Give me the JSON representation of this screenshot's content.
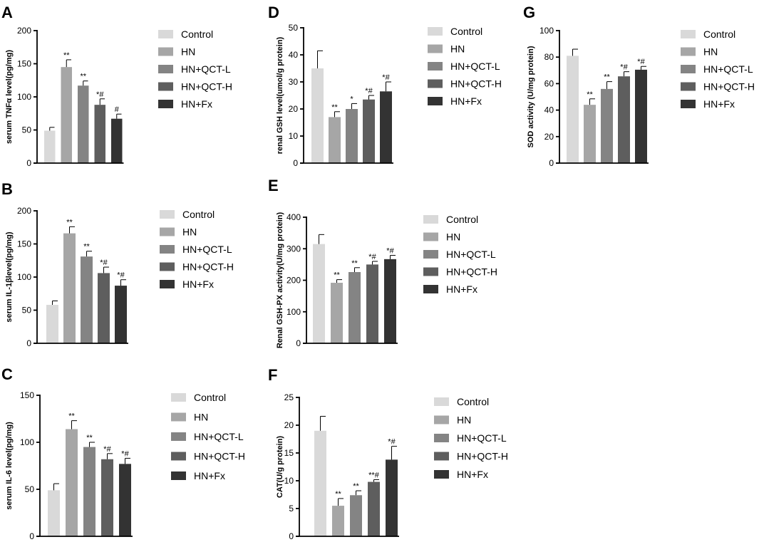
{
  "colors": {
    "Control": "#d9d9d9",
    "HN": "#a6a6a6",
    "HN+QCT-L": "#848484",
    "HN+QCT-H": "#5e5e5e",
    "HN+Fx": "#333333",
    "axis": "#000000",
    "background": "#ffffff"
  },
  "chart_data": [
    {
      "panel": "A",
      "type": "bar",
      "ylabel": "serum TNFα level(pg/mg)",
      "ylim": [
        0,
        200
      ],
      "yticks": [
        0,
        50,
        100,
        150,
        200
      ],
      "categories": [
        "Control",
        "HN",
        "HN+QCT-L",
        "HN+QCT-H",
        "HN+Fx"
      ],
      "values": [
        49,
        145,
        117,
        88,
        67
      ],
      "errors": [
        5,
        11,
        7,
        9,
        7
      ],
      "significance": [
        "",
        "**",
        "**",
        "*#",
        "#"
      ],
      "legend": [
        "Control",
        "HN",
        "HN+QCT-L",
        "HN+QCT-H",
        "HN+Fx"
      ]
    },
    {
      "panel": "B",
      "type": "bar",
      "ylabel": "serum IL-1βlevel(pg/mg)",
      "ylim": [
        0,
        200
      ],
      "yticks": [
        0,
        50,
        100,
        150,
        200
      ],
      "categories": [
        "Control",
        "HN",
        "HN+QCT-L",
        "HN+QCT-H",
        "HN+Fx"
      ],
      "values": [
        58,
        166,
        131,
        106,
        87
      ],
      "errors": [
        6,
        10,
        8,
        9,
        9
      ],
      "significance": [
        "",
        "**",
        "**",
        "*#",
        "*#"
      ],
      "legend": [
        "Control",
        "HN",
        "HN+QCT-L",
        "HN+QCT-H",
        "HN+Fx"
      ]
    },
    {
      "panel": "C",
      "type": "bar",
      "ylabel": "serum IL-6 level(pg/mg)",
      "ylim": [
        0,
        150
      ],
      "yticks": [
        0,
        50,
        100,
        150
      ],
      "categories": [
        "Control",
        "HN",
        "HN+QCT-L",
        "HN+QCT-H",
        "HN+Fx"
      ],
      "values": [
        49,
        114,
        95,
        82,
        77
      ],
      "errors": [
        7,
        9,
        5,
        6,
        6
      ],
      "significance": [
        "",
        "**",
        "**",
        "*#",
        "*#"
      ],
      "legend": [
        "Control",
        "HN",
        "HN+QCT-L",
        "HN+QCT-H",
        "HN+Fx"
      ]
    },
    {
      "panel": "D",
      "type": "bar",
      "ylabel": "renal GSH level(umol/g protein)",
      "ylim": [
        0,
        50
      ],
      "yticks": [
        0,
        10,
        20,
        30,
        40,
        50
      ],
      "categories": [
        "Control",
        "HN",
        "HN+QCT-L",
        "HN+QCT-H",
        "HN+Fx"
      ],
      "values": [
        35,
        17,
        20,
        23.5,
        26.5
      ],
      "errors": [
        6.5,
        2,
        2,
        1.5,
        3.5
      ],
      "significance": [
        "",
        "**",
        "*",
        "*#",
        "*#"
      ],
      "legend": [
        "Control",
        "HN",
        "HN+QCT-L",
        "HN+QCT-H",
        "HN+Fx"
      ]
    },
    {
      "panel": "E",
      "type": "bar",
      "ylabel": "Renal GSH-PX activity(U/mg protein)",
      "ylim": [
        0,
        400
      ],
      "yticks": [
        0,
        100,
        200,
        300,
        400
      ],
      "categories": [
        "Control",
        "HN",
        "HN+QCT-L",
        "HN+QCT-H",
        "HN+Fx"
      ],
      "values": [
        315,
        192,
        226,
        250,
        267
      ],
      "errors": [
        30,
        10,
        14,
        10,
        12
      ],
      "significance": [
        "",
        "**",
        "**",
        "*#",
        "*#"
      ],
      "legend": [
        "Control",
        "HN",
        "HN+QCT-L",
        "HN+QCT-H",
        "HN+Fx"
      ]
    },
    {
      "panel": "F",
      "type": "bar",
      "ylabel": "CAT(U/g protein)",
      "ylim": [
        0,
        25
      ],
      "yticks": [
        0,
        5,
        10,
        15,
        20,
        25
      ],
      "categories": [
        "Control",
        "HN",
        "HN+QCT-L",
        "HN+QCT-H",
        "HN+Fx"
      ],
      "values": [
        19,
        5.5,
        7.4,
        9.8,
        13.8
      ],
      "errors": [
        2.6,
        1.3,
        0.8,
        0.4,
        2.4
      ],
      "significance": [
        "",
        "**",
        "**",
        "**#",
        "*#"
      ],
      "legend": [
        "Control",
        "HN",
        "HN+QCT-L",
        "HN+QCT-H",
        "HN+Fx"
      ]
    },
    {
      "panel": "G",
      "type": "bar",
      "ylabel": "SOD activity (U/mg protein)",
      "ylim": [
        0,
        100
      ],
      "yticks": [
        0,
        20,
        40,
        60,
        80,
        100
      ],
      "categories": [
        "Control",
        "HN",
        "HN+QCT-L",
        "HN+QCT-H",
        "HN+Fx"
      ],
      "values": [
        81,
        44,
        56,
        65.5,
        70.5
      ],
      "errors": [
        5,
        4.5,
        5.5,
        3.5,
        2.5
      ],
      "significance": [
        "",
        "**",
        "**",
        "*#",
        "*#"
      ],
      "legend": [
        "Control",
        "HN",
        "HN+QCT-L",
        "HN+QCT-H",
        "HN+Fx"
      ]
    }
  ]
}
